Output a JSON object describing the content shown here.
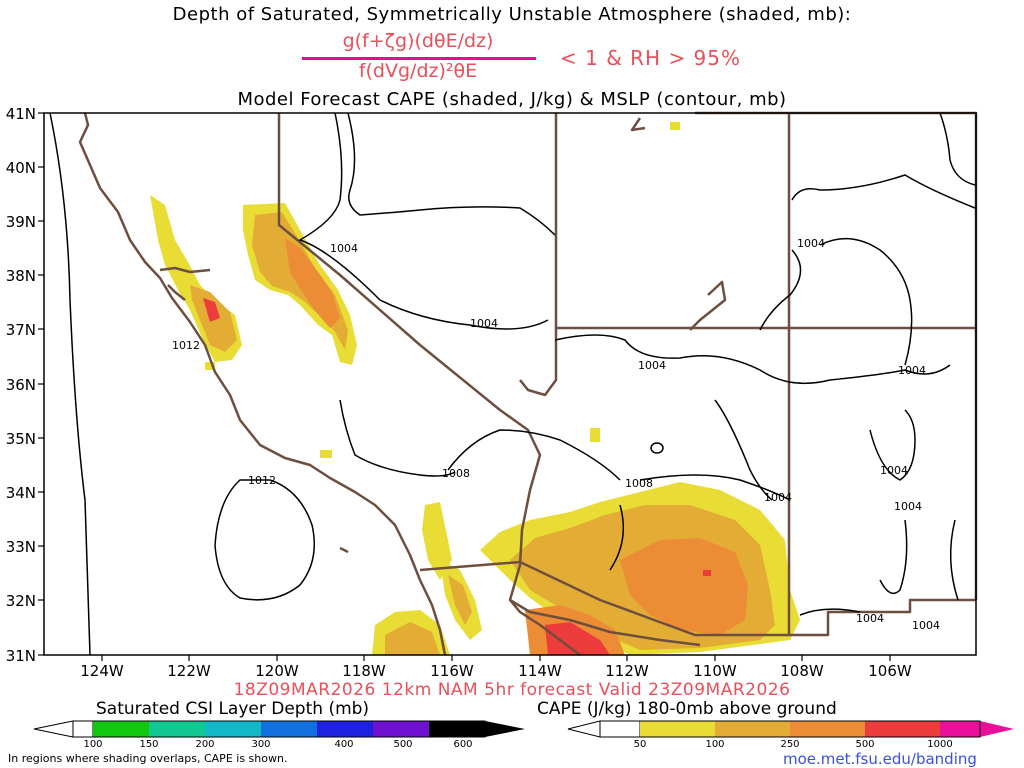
{
  "header": {
    "title": "Depth of Saturated, Symmetrically Unstable Atmosphere (shaded, mb):",
    "formula_numerator": "g(f+ζg)(dθE/dz)",
    "formula_denominator": "f(dVg/dz)²θE",
    "formula_condition": "< 1 & RH > 95%",
    "subtitle": "Model Forecast CAPE (shaded, J/kg) & MSLP (contour, mb)"
  },
  "map": {
    "latitude_labels": [
      "41N",
      "40N",
      "39N",
      "38N",
      "37N",
      "36N",
      "35N",
      "34N",
      "33N",
      "32N",
      "31N"
    ],
    "longitude_labels": [
      "124W",
      "122W",
      "120W",
      "118W",
      "116W",
      "114W",
      "112W",
      "110W",
      "108W",
      "106W"
    ],
    "mslp_contour_labels": [
      "1004",
      "1004",
      "1004",
      "1004",
      "1012",
      "1008",
      "1008",
      "1004",
      "1004",
      "1004",
      "1004",
      "1012",
      "1004",
      "1004"
    ],
    "colors": {
      "coast_border": "#6e4f3f",
      "contour": "#000000",
      "cape_50_100": "#e8dc35",
      "cape_100_250": "#e3ad35",
      "cape_250_500": "#ec8c35",
      "cape_500_1000": "#ec3c3c"
    }
  },
  "footer": {
    "valid_line": "18Z09MAR2026 12km NAM 5hr forecast Valid 23Z09MAR2026",
    "csi_colorbar": {
      "title": "Saturated CSI Layer Depth (mb)",
      "ticks": [
        "100",
        "150",
        "200",
        "300",
        "400",
        "500",
        "600"
      ],
      "colors": [
        "#10c810",
        "#10c890",
        "#10b8c8",
        "#1070e0",
        "#2020e0",
        "#7010d0"
      ]
    },
    "cape_colorbar": {
      "title": "CAPE (J/kg) 180-0mb above ground",
      "ticks": [
        "50",
        "100",
        "250",
        "500",
        "1000"
      ],
      "colors": [
        "#e8dc35",
        "#e3ad35",
        "#ec8c35",
        "#ec3c3c",
        "#e8109a"
      ]
    },
    "footnote": "In regions where shading overlaps, CAPE is shown.",
    "credit": "moe.met.fsu.edu/banding"
  }
}
